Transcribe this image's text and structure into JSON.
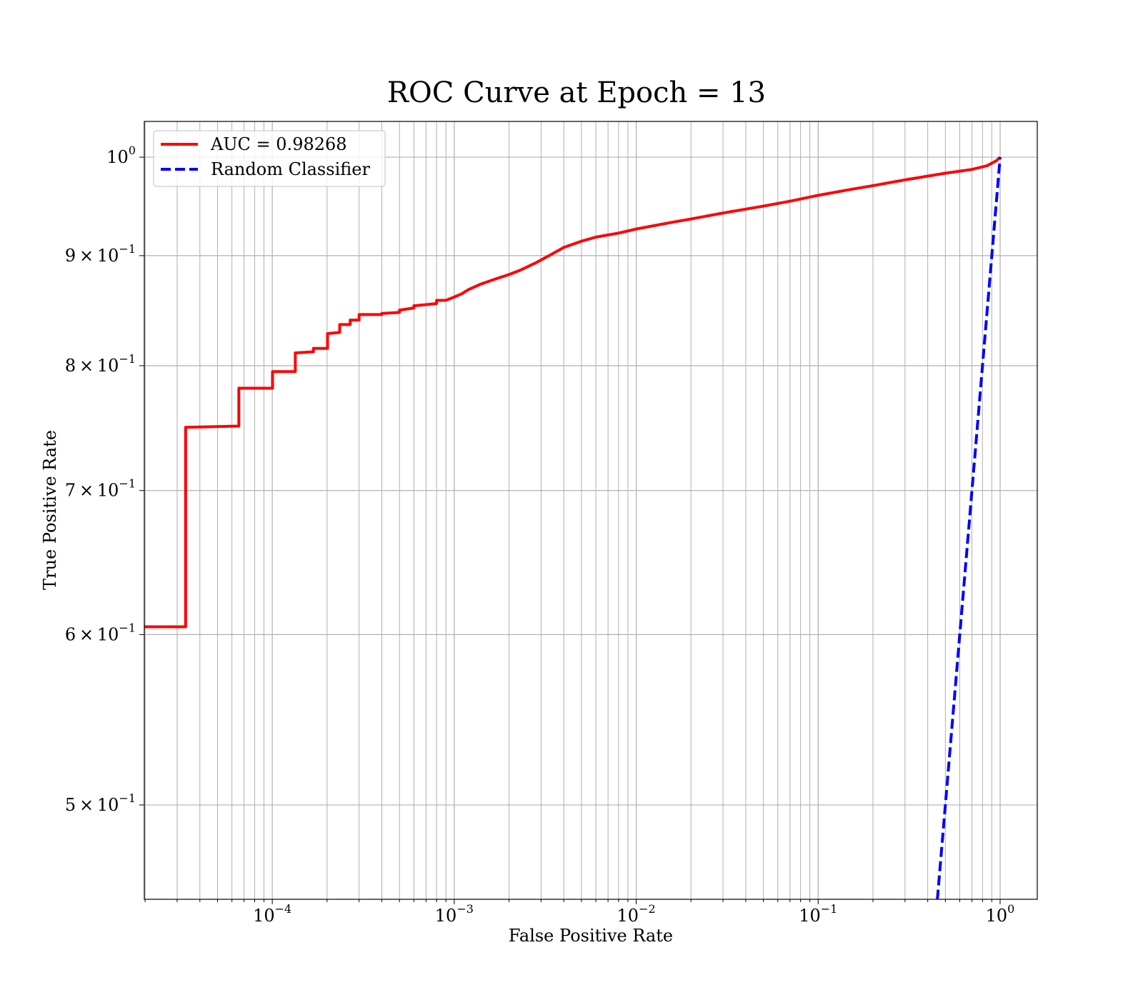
{
  "chart_data": {
    "type": "line",
    "title": "ROC Curve at Epoch = 13",
    "xlabel": "False Positive Rate",
    "ylabel": "True Positive Rate",
    "xscale": "log",
    "yscale": "log",
    "xlim": [
      1.98e-05,
      1.6
    ],
    "ylim": [
      0.452,
      1.039
    ],
    "grid": true,
    "grid_minor": true,
    "legend_position": "top-left",
    "x_ticks": [
      {
        "base": "10",
        "exp": "−4",
        "value": 0.0001
      },
      {
        "base": "10",
        "exp": "−3",
        "value": 0.001
      },
      {
        "base": "10",
        "exp": "−2",
        "value": 0.01
      },
      {
        "base": "10",
        "exp": "−1",
        "value": 0.1
      },
      {
        "base": "10",
        "exp": "0",
        "value": 1
      }
    ],
    "y_ticks": [
      {
        "mant": "",
        "base": "10",
        "exp": "0",
        "value": 1.0
      },
      {
        "mant": "9",
        "base": "10",
        "exp": "−1",
        "value": 0.9
      },
      {
        "mant": "8",
        "base": "10",
        "exp": "−1",
        "value": 0.8
      },
      {
        "mant": "7",
        "base": "10",
        "exp": "−1",
        "value": 0.7
      },
      {
        "mant": "6",
        "base": "10",
        "exp": "−1",
        "value": 0.6
      },
      {
        "mant": "5",
        "base": "10",
        "exp": "−1",
        "value": 0.5
      }
    ],
    "series": [
      {
        "name": "AUC = 0.98268",
        "color": "#ff0000",
        "style": "solid",
        "points": [
          [
            1.98e-05,
            0.605
          ],
          [
            3.34e-05,
            0.605
          ],
          [
            3.34e-05,
            0.749
          ],
          [
            6.55e-05,
            0.75
          ],
          [
            6.55e-05,
            0.781
          ],
          [
            0.0001003,
            0.781
          ],
          [
            0.0001003,
            0.795
          ],
          [
            0.0001338,
            0.795
          ],
          [
            0.0001338,
            0.811
          ],
          [
            0.0001684,
            0.812
          ],
          [
            0.0001684,
            0.815
          ],
          [
            0.0002012,
            0.815
          ],
          [
            0.0002012,
            0.828
          ],
          [
            0.0002347,
            0.829
          ],
          [
            0.0002347,
            0.836
          ],
          [
            0.0002681,
            0.836
          ],
          [
            0.0002681,
            0.84
          ],
          [
            0.0003,
            0.84
          ],
          [
            0.0003,
            0.845
          ],
          [
            0.00033,
            0.845
          ],
          [
            0.0004,
            0.845
          ],
          [
            0.0004,
            0.846
          ],
          [
            0.0005,
            0.847
          ],
          [
            0.0005,
            0.849
          ],
          [
            0.0006,
            0.851
          ],
          [
            0.0006,
            0.853
          ],
          [
            0.0007,
            0.854
          ],
          [
            0.0008,
            0.855
          ],
          [
            0.0008,
            0.858
          ],
          [
            0.0009,
            0.858
          ],
          [
            0.001,
            0.861
          ],
          [
            0.0011,
            0.864
          ],
          [
            0.0012,
            0.868
          ],
          [
            0.0014,
            0.873
          ],
          [
            0.0017,
            0.878
          ],
          [
            0.002,
            0.882
          ],
          [
            0.0023,
            0.886
          ],
          [
            0.0028,
            0.893
          ],
          [
            0.0034,
            0.901
          ],
          [
            0.004,
            0.908
          ],
          [
            0.005,
            0.914
          ],
          [
            0.006,
            0.918
          ],
          [
            0.008,
            0.922
          ],
          [
            0.01,
            0.926
          ],
          [
            0.015,
            0.932
          ],
          [
            0.02,
            0.936
          ],
          [
            0.03,
            0.942
          ],
          [
            0.05,
            0.949
          ],
          [
            0.07,
            0.954
          ],
          [
            0.1,
            0.96
          ],
          [
            0.15,
            0.966
          ],
          [
            0.2,
            0.97
          ],
          [
            0.3,
            0.976
          ],
          [
            0.5,
            0.983
          ],
          [
            0.7,
            0.987
          ],
          [
            0.85,
            0.991
          ],
          [
            0.95,
            0.996
          ],
          [
            1.0,
            1.0
          ]
        ]
      },
      {
        "name": "Random Classifier",
        "color": "#0000ff",
        "style": "dashed",
        "points": [
          [
            0.4,
            0.4
          ],
          [
            1.0,
            1.0
          ]
        ]
      }
    ]
  }
}
